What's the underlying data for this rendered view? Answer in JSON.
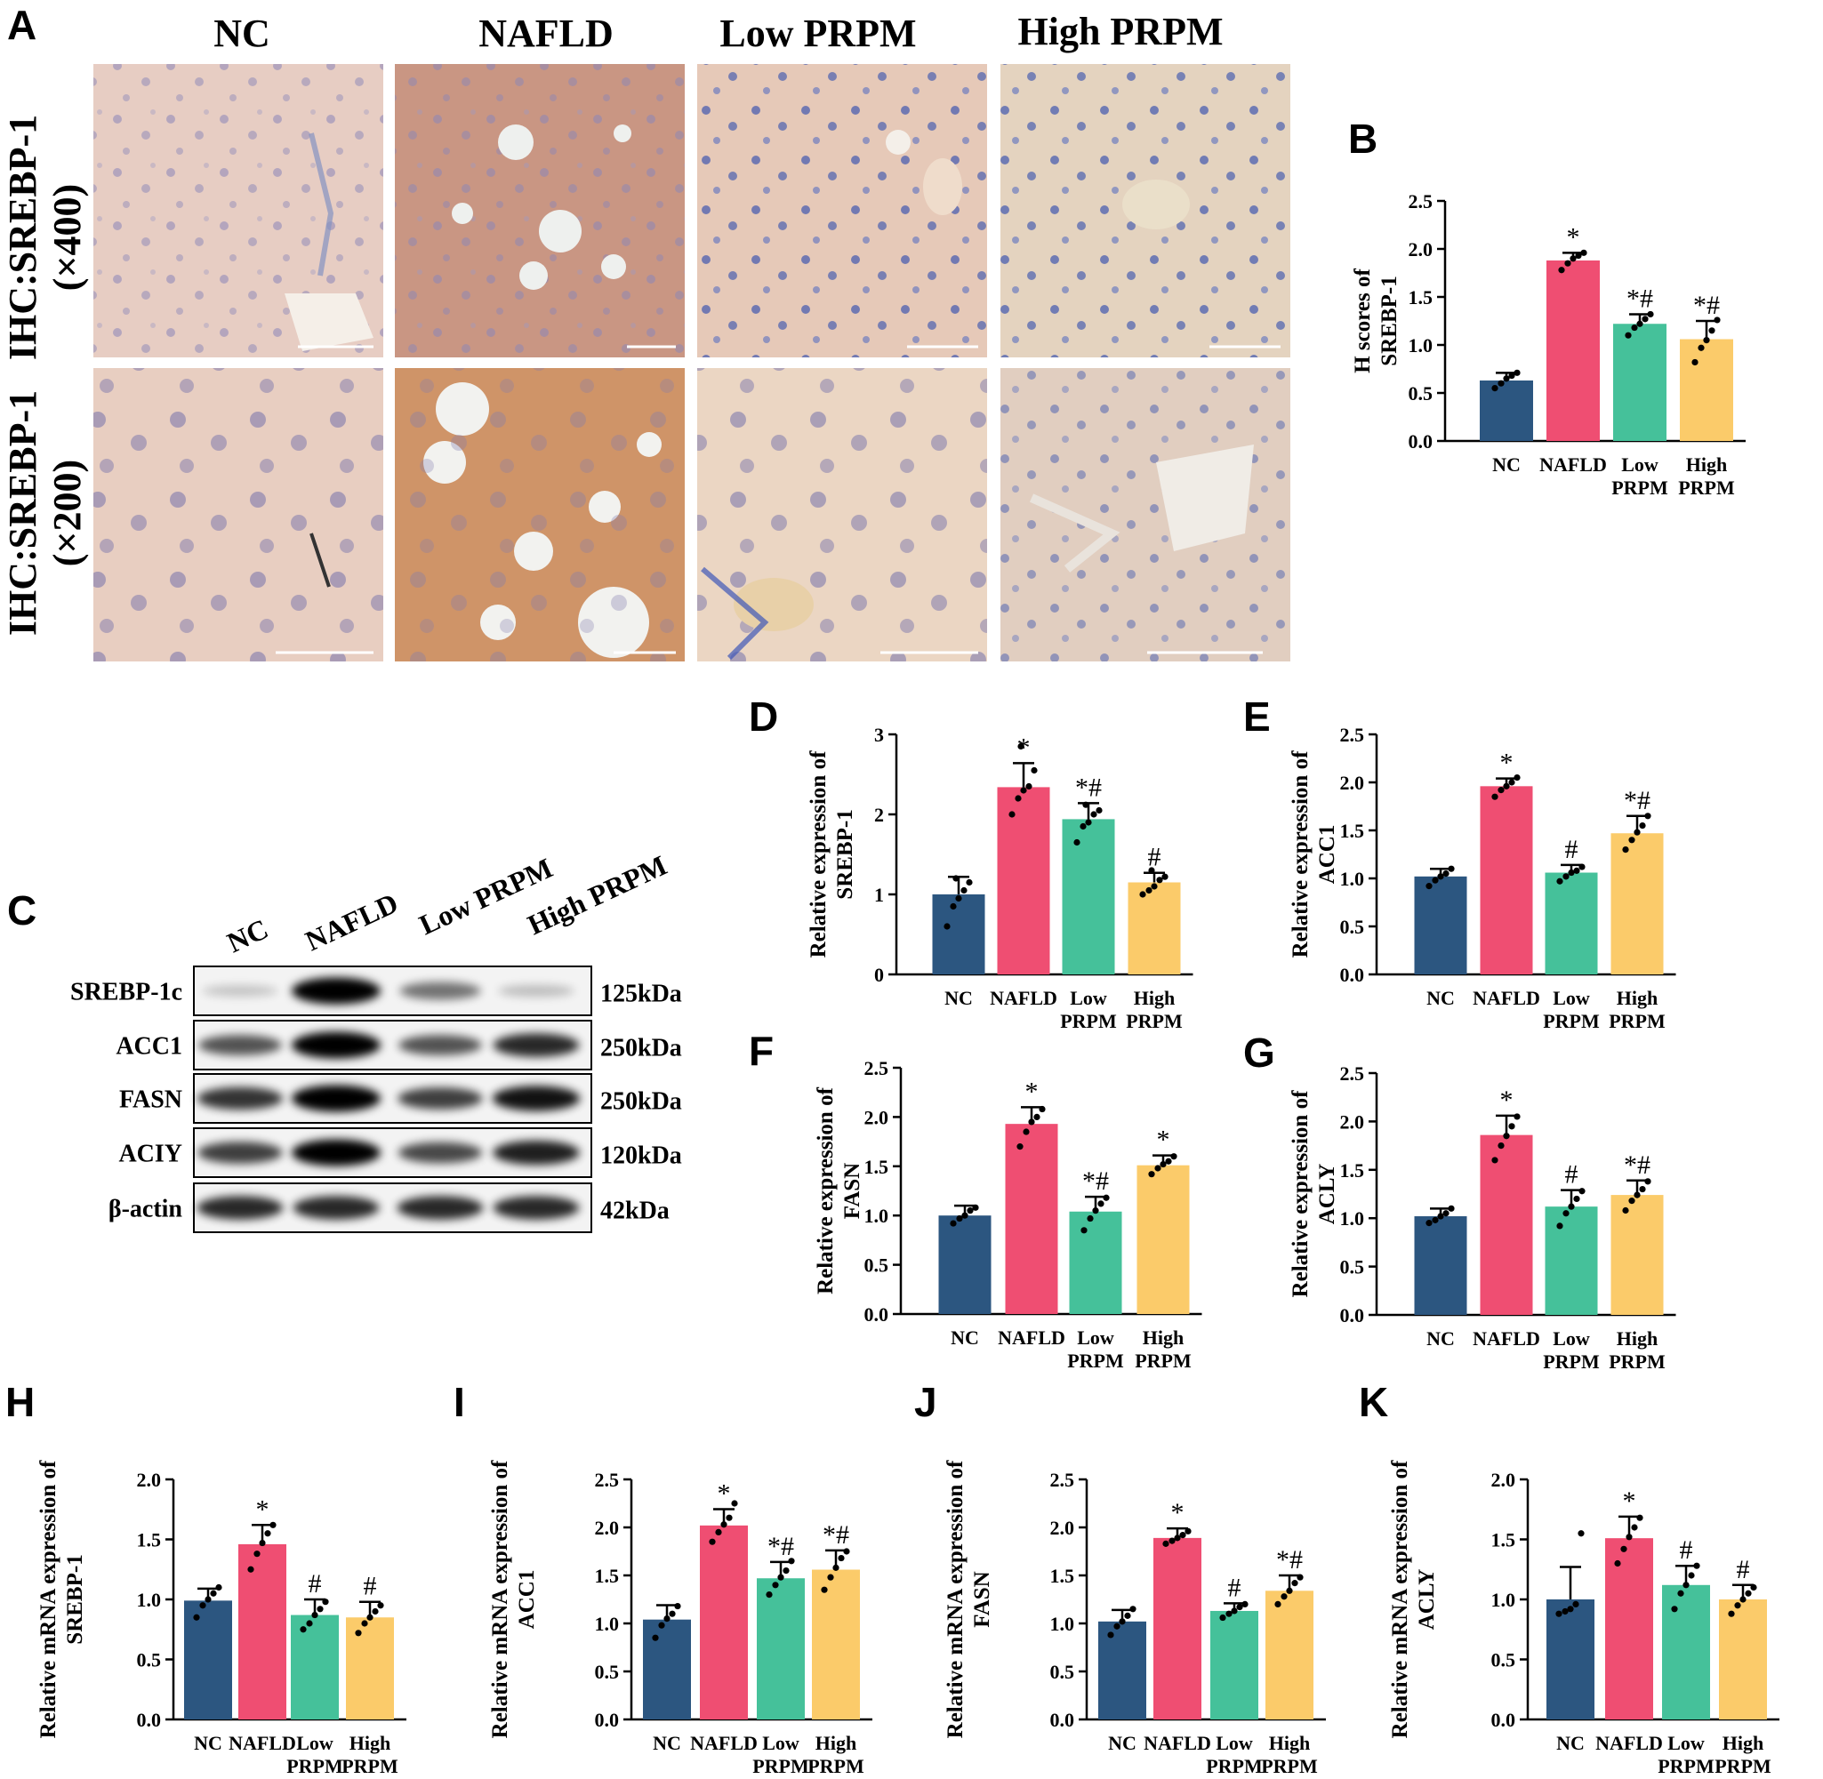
{
  "colors": {
    "NC": "#2c5680",
    "NAFLD": "#ef4e72",
    "Low PRPM": "#45c19a",
    "High PRPM": "#fbcb6a"
  },
  "panels": {
    "A": "A",
    "B": "B",
    "C": "C",
    "D": "D",
    "E": "E",
    "F": "F",
    "G": "G",
    "H": "H",
    "I": "I",
    "J": "J",
    "K": "K"
  },
  "ihc": {
    "columns": [
      "NC",
      "NAFLD",
      "Low PRPM",
      "High PRPM"
    ],
    "row_labels": [
      {
        "line1": "IHC:SREBP-1",
        "line2": "(×400)"
      },
      {
        "line1": "IHC:SREBP-1",
        "line2": "(×200)"
      }
    ],
    "images": [
      [
        "NC liver ×400",
        "NAFLD liver ×400",
        "Low PRPM liver ×400",
        "High PRPM liver ×400"
      ],
      [
        "NC liver ×200",
        "NAFLD liver ×200",
        "Low PRPM liver ×200",
        "High PRPM liver ×200"
      ]
    ]
  },
  "western_blot": {
    "lanes": [
      "NC",
      "NAFLD",
      "Low PRPM",
      "High PRPM"
    ],
    "proteins": [
      {
        "name": "SREBP-1c",
        "size": "125kDa",
        "intensity": [
          0.05,
          1.0,
          0.45,
          0.08
        ]
      },
      {
        "name": "ACC1",
        "size": "250kDa",
        "intensity": [
          0.6,
          1.0,
          0.6,
          0.8
        ]
      },
      {
        "name": "FASN",
        "size": "250kDa",
        "intensity": [
          0.75,
          1.0,
          0.7,
          0.9
        ]
      },
      {
        "name": "ACIY",
        "size": "120kDa",
        "intensity": [
          0.7,
          1.0,
          0.65,
          0.85
        ]
      },
      {
        "name": "β-actin",
        "size": "42kDa",
        "intensity": [
          0.8,
          0.8,
          0.8,
          0.8
        ]
      }
    ]
  },
  "chart_data": [
    {
      "panel": "B",
      "type": "bar",
      "ylabel": "H scores of  SREBP-1",
      "categories": [
        "NC",
        "NAFLD",
        "Low PRPM",
        "High PRPM"
      ],
      "values": [
        0.63,
        1.88,
        1.22,
        1.06
      ],
      "errors": [
        0.08,
        0.08,
        0.1,
        0.19
      ],
      "points": [
        [
          0.55,
          0.6,
          0.65,
          0.68,
          0.71
        ],
        [
          1.78,
          1.85,
          1.9,
          1.93,
          1.96
        ],
        [
          1.1,
          1.18,
          1.22,
          1.27,
          1.32
        ],
        [
          0.82,
          0.97,
          1.05,
          1.15,
          1.26
        ]
      ],
      "sig": [
        "",
        "*",
        "*#",
        "*#"
      ],
      "ylim": [
        0,
        2.5
      ],
      "yticks": [
        "0.0",
        "0.5",
        "1.0",
        "1.5",
        "2.0",
        "2.5"
      ]
    },
    {
      "panel": "D",
      "type": "bar",
      "ylabel": "Relative expression of  SREBP-1",
      "categories": [
        "NC",
        "NAFLD",
        "Low PRPM",
        "High PRPM"
      ],
      "values": [
        1.0,
        2.34,
        1.94,
        1.15
      ],
      "errors": [
        0.22,
        0.3,
        0.2,
        0.12
      ],
      "points": [
        [
          0.6,
          0.85,
          0.95,
          1.05,
          1.15,
          1.2
        ],
        [
          2.0,
          2.2,
          2.3,
          2.35,
          2.55,
          2.85
        ],
        [
          1.65,
          1.85,
          1.9,
          2.0,
          2.05,
          2.12
        ],
        [
          1.0,
          1.05,
          1.1,
          1.18,
          1.22,
          1.3
        ]
      ],
      "sig": [
        "",
        "*",
        "*#",
        "#"
      ],
      "ylim": [
        0,
        3
      ],
      "yticks": [
        "0",
        "1",
        "2",
        "3"
      ]
    },
    {
      "panel": "E",
      "type": "bar",
      "ylabel": "Relative expression of  ACC1",
      "categories": [
        "NC",
        "NAFLD",
        "Low PRPM",
        "High PRPM"
      ],
      "values": [
        1.02,
        1.96,
        1.06,
        1.47
      ],
      "errors": [
        0.08,
        0.08,
        0.08,
        0.18
      ],
      "points": [
        [
          0.92,
          0.98,
          1.02,
          1.05,
          1.1
        ],
        [
          1.85,
          1.92,
          1.96,
          2.0,
          2.05
        ],
        [
          0.97,
          1.02,
          1.06,
          1.08,
          1.12
        ],
        [
          1.3,
          1.4,
          1.48,
          1.55,
          1.65
        ]
      ],
      "sig": [
        "",
        "*",
        "#",
        "*#"
      ],
      "ylim": [
        0,
        2.5
      ],
      "yticks": [
        "0.0",
        "0.5",
        "1.0",
        "1.5",
        "2.0",
        "2.5"
      ]
    },
    {
      "panel": "F",
      "type": "bar",
      "ylabel": "Relative expression of  FASN",
      "categories": [
        "NC",
        "NAFLD",
        "Low PRPM",
        "High PRPM"
      ],
      "values": [
        1.0,
        1.93,
        1.04,
        1.51
      ],
      "errors": [
        0.1,
        0.17,
        0.15,
        0.1
      ],
      "points": [
        [
          0.92,
          0.97,
          1.0,
          1.05,
          1.08
        ],
        [
          1.7,
          1.85,
          1.95,
          2.0,
          2.08
        ],
        [
          0.85,
          0.97,
          1.05,
          1.12,
          1.18
        ],
        [
          1.42,
          1.48,
          1.52,
          1.55,
          1.6
        ]
      ],
      "sig": [
        "",
        "*",
        "*#",
        "*"
      ],
      "ylim": [
        0,
        2.5
      ],
      "yticks": [
        "0.0",
        "0.5",
        "1.0",
        "1.5",
        "2.0",
        "2.5"
      ]
    },
    {
      "panel": "G",
      "type": "bar",
      "ylabel": "Relative expression of  ACLY",
      "categories": [
        "NC",
        "NAFLD",
        "Low PRPM",
        "High PRPM"
      ],
      "values": [
        1.02,
        1.86,
        1.12,
        1.24
      ],
      "errors": [
        0.08,
        0.2,
        0.17,
        0.15
      ],
      "points": [
        [
          0.95,
          0.98,
          1.02,
          1.05,
          1.1
        ],
        [
          1.6,
          1.75,
          1.85,
          1.95,
          2.05
        ],
        [
          0.92,
          1.05,
          1.12,
          1.2,
          1.28
        ],
        [
          1.08,
          1.18,
          1.24,
          1.3,
          1.38
        ]
      ],
      "sig": [
        "",
        "*",
        "#",
        "*#"
      ],
      "ylim": [
        0,
        2.5
      ],
      "yticks": [
        "0.0",
        "0.5",
        "1.0",
        "1.5",
        "2.0",
        "2.5"
      ]
    },
    {
      "panel": "H",
      "type": "bar",
      "ylabel": "Relative mRNA expression of  SREBP-1",
      "categories": [
        "NC",
        "NAFLD",
        "Low PRPM",
        "High PRPM"
      ],
      "values": [
        0.99,
        1.46,
        0.87,
        0.85
      ],
      "errors": [
        0.1,
        0.16,
        0.13,
        0.13
      ],
      "points": [
        [
          0.85,
          0.95,
          1.0,
          1.05,
          1.1
        ],
        [
          1.25,
          1.38,
          1.47,
          1.55,
          1.62
        ],
        [
          0.75,
          0.8,
          0.87,
          0.92,
          0.98
        ],
        [
          0.72,
          0.8,
          0.85,
          0.9,
          0.95
        ]
      ],
      "sig": [
        "",
        "*",
        "#",
        "#"
      ],
      "ylim": [
        0,
        2.0
      ],
      "yticks": [
        "0.0",
        "0.5",
        "1.0",
        "1.5",
        "2.0"
      ]
    },
    {
      "panel": "I",
      "type": "bar",
      "ylabel": "Relative mRNA expression of  ACC1",
      "categories": [
        "NC",
        "NAFLD",
        "Low PRPM",
        "High PRPM"
      ],
      "values": [
        1.04,
        2.02,
        1.47,
        1.56
      ],
      "errors": [
        0.15,
        0.17,
        0.17,
        0.2
      ],
      "points": [
        [
          0.85,
          0.98,
          1.05,
          1.1,
          1.18
        ],
        [
          1.85,
          1.95,
          2.03,
          2.1,
          2.25
        ],
        [
          1.3,
          1.4,
          1.48,
          1.55,
          1.65
        ],
        [
          1.35,
          1.48,
          1.58,
          1.68,
          1.75
        ]
      ],
      "sig": [
        "",
        "*",
        "*#",
        "*#"
      ],
      "ylim": [
        0,
        2.5
      ],
      "yticks": [
        "0.0",
        "0.5",
        "1.0",
        "1.5",
        "2.0",
        "2.5"
      ]
    },
    {
      "panel": "J",
      "type": "bar",
      "ylabel": "Relative mRNA expression of  FASN",
      "categories": [
        "NC",
        "NAFLD",
        "Low PRPM",
        "High PRPM"
      ],
      "values": [
        1.02,
        1.89,
        1.13,
        1.34
      ],
      "errors": [
        0.12,
        0.1,
        0.08,
        0.16
      ],
      "points": [
        [
          0.88,
          0.97,
          1.02,
          1.08,
          1.15
        ],
        [
          1.83,
          1.86,
          1.89,
          1.92,
          1.96
        ],
        [
          1.06,
          1.1,
          1.13,
          1.17,
          1.2
        ],
        [
          1.2,
          1.28,
          1.34,
          1.42,
          1.48
        ]
      ],
      "sig": [
        "",
        "*",
        "#",
        "*#"
      ],
      "ylim": [
        0,
        2.5
      ],
      "yticks": [
        "0.0",
        "0.5",
        "1.0",
        "1.5",
        "2.0",
        "2.5"
      ]
    },
    {
      "panel": "K",
      "type": "bar",
      "ylabel": "Relative mRNA expression of  ACLY",
      "categories": [
        "NC",
        "NAFLD",
        "Low PRPM",
        "High PRPM"
      ],
      "values": [
        1.0,
        1.51,
        1.12,
        1.0
      ],
      "errors": [
        0.27,
        0.18,
        0.16,
        0.12
      ],
      "points": [
        [
          0.88,
          0.9,
          0.92,
          0.96,
          1.55
        ],
        [
          1.3,
          1.42,
          1.52,
          1.6,
          1.68
        ],
        [
          0.92,
          1.05,
          1.12,
          1.2,
          1.28
        ],
        [
          0.88,
          0.95,
          1.0,
          1.05,
          1.1
        ]
      ],
      "sig": [
        "",
        "*",
        "#",
        "#"
      ],
      "ylim": [
        0,
        2.0
      ],
      "yticks": [
        "0.0",
        "0.5",
        "1.0",
        "1.5",
        "2.0"
      ]
    }
  ]
}
